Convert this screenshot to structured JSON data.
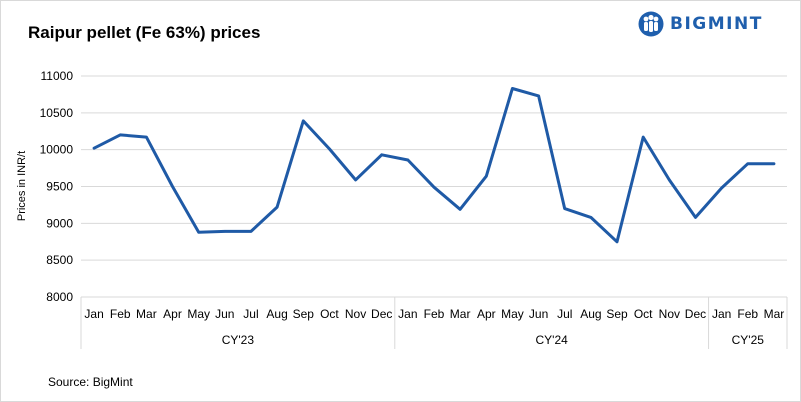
{
  "title": "Raipur pellet (Fe 63%) prices",
  "source": "Source: BigMint",
  "logo": {
    "text": "BIGMINT",
    "color": "#1f5fad",
    "icon": "people-group-icon"
  },
  "chart_data": {
    "type": "line",
    "title": "Raipur pellet (Fe 63%) prices",
    "ylabel": "Prices in INR/t",
    "xlabel": "",
    "ylim": [
      8000,
      11000
    ],
    "yticks": [
      8000,
      8500,
      9000,
      9500,
      10000,
      10500,
      11000
    ],
    "grid": true,
    "line_color": "#1f5aa6",
    "categories": [
      "Jan",
      "Feb",
      "Mar",
      "Apr",
      "May",
      "Jun",
      "Jul",
      "Aug",
      "Sep",
      "Oct",
      "Nov",
      "Dec",
      "Jan",
      "Feb",
      "Mar",
      "Apr",
      "May",
      "Jun",
      "Jul",
      "Aug",
      "Sep",
      "Oct",
      "Nov",
      "Dec",
      "Jan",
      "Feb",
      "Mar"
    ],
    "groups": [
      {
        "label": "CY'23",
        "count": 12
      },
      {
        "label": "CY'24",
        "count": 12
      },
      {
        "label": "CY'25",
        "count": 3
      }
    ],
    "series": [
      {
        "values": [
          10020,
          10200,
          10170,
          9500,
          8880,
          8890,
          8890,
          9220,
          10390,
          10010,
          9590,
          9930,
          9860,
          9490,
          9190,
          9640,
          10830,
          10730,
          9200,
          9080,
          8750,
          10170,
          9590,
          9080,
          9480,
          9810,
          9810
        ]
      }
    ]
  }
}
